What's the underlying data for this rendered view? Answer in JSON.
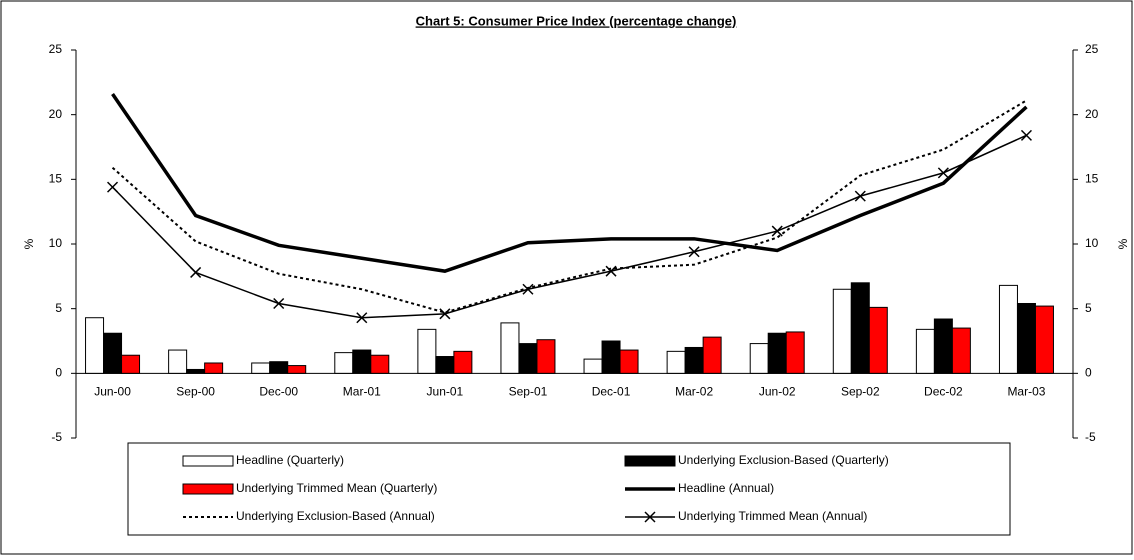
{
  "chart_data": {
    "type": "bar-line",
    "title": "Chart 5: Consumer Price Index (percentage change)",
    "categories": [
      "Jun-00",
      "Sep-00",
      "Dec-00",
      "Mar-01",
      "Jun-01",
      "Sep-01",
      "Dec-01",
      "Mar-02",
      "Jun-02",
      "Sep-02",
      "Dec-02",
      "Mar-03"
    ],
    "ylabel": "%",
    "y2label": "%",
    "ylim": [
      -5,
      25
    ],
    "yticks": [
      -5,
      0,
      5,
      10,
      15,
      20,
      25
    ],
    "y2lim": [
      -5,
      25
    ],
    "y2ticks": [
      -5,
      0,
      5,
      10,
      15,
      20,
      25
    ],
    "series": [
      {
        "name": "Headline (Quarterly)",
        "kind": "bar",
        "color": "#ffffff",
        "values": [
          4.3,
          1.8,
          0.8,
          1.6,
          3.4,
          3.9,
          1.1,
          1.7,
          2.3,
          6.5,
          3.4,
          6.8
        ]
      },
      {
        "name": "Underlying Exclusion-Based (Quarterly)",
        "kind": "bar",
        "color": "#000000",
        "values": [
          3.1,
          0.3,
          0.9,
          1.8,
          1.3,
          2.3,
          2.5,
          2.0,
          3.1,
          7.0,
          4.2,
          5.4
        ]
      },
      {
        "name": "Underlying Trimmed Mean (Quarterly)",
        "kind": "bar",
        "color": "#ff0000",
        "values": [
          1.4,
          0.8,
          0.6,
          1.4,
          1.7,
          2.6,
          1.8,
          2.8,
          3.2,
          5.1,
          3.5,
          5.2
        ]
      },
      {
        "name": "Headline (Annual)",
        "kind": "line",
        "color": "#000000",
        "style": "solid",
        "values": [
          21.6,
          12.2,
          9.9,
          8.9,
          7.9,
          10.1,
          10.4,
          10.4,
          9.5,
          12.2,
          14.7,
          20.6
        ]
      },
      {
        "name": "Underlying Exclusion-Based (Annual)",
        "kind": "line",
        "color": "#000000",
        "style": "dotted",
        "values": [
          15.9,
          10.2,
          7.7,
          6.5,
          4.7,
          6.6,
          8.1,
          8.4,
          10.5,
          15.3,
          17.3,
          21.1
        ]
      },
      {
        "name": "Underlying Trimmed Mean (Annual)",
        "kind": "line",
        "color": "#000000",
        "style": "solid",
        "marker": "x",
        "values": [
          14.4,
          7.8,
          5.4,
          4.3,
          4.6,
          6.5,
          7.9,
          9.4,
          11.0,
          13.7,
          15.5,
          18.4
        ]
      }
    ]
  }
}
